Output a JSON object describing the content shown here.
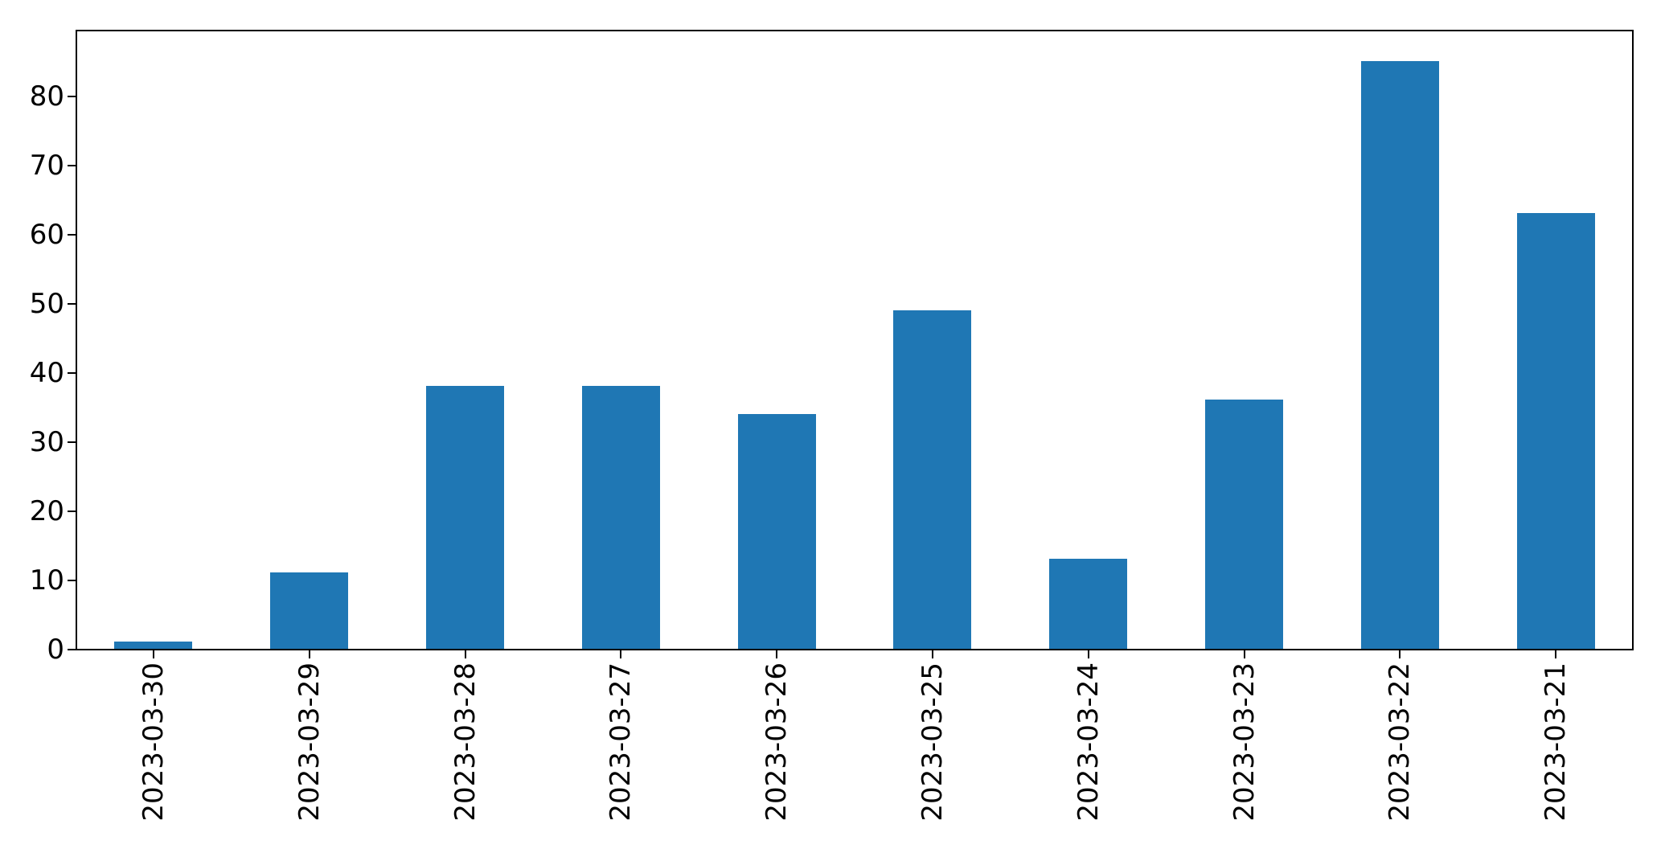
{
  "chart_data": {
    "type": "bar",
    "title": "",
    "xlabel": "",
    "ylabel": "",
    "categories": [
      "2023-03-30",
      "2023-03-29",
      "2023-03-28",
      "2023-03-27",
      "2023-03-26",
      "2023-03-25",
      "2023-03-24",
      "2023-03-23",
      "2023-03-22",
      "2023-03-21"
    ],
    "values": [
      1,
      11,
      38,
      38,
      34,
      49,
      13,
      36,
      85,
      63
    ],
    "yticks": [
      0,
      10,
      20,
      30,
      40,
      50,
      60,
      70,
      80
    ],
    "ylim": [
      0,
      89.7
    ],
    "grid": false,
    "legend_position": "none",
    "x_tick_label_rotation_deg": 90,
    "bar_color": "#1f77b4",
    "axis_color": "#000000",
    "background_color": "#ffffff"
  }
}
